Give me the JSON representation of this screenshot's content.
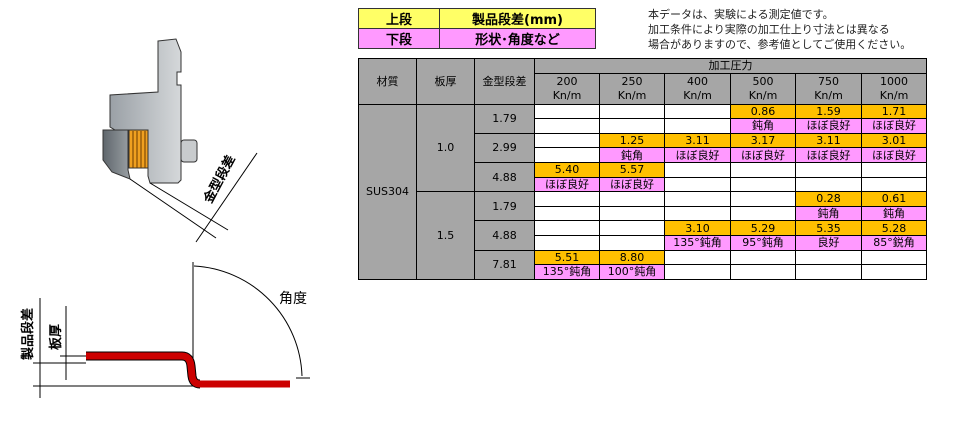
{
  "legend": {
    "rows": [
      {
        "label": "上段",
        "desc": "製品段差(mm)",
        "color": "#ffff66"
      },
      {
        "label": "下段",
        "desc": "形状･角度など",
        "color": "#ff99ff"
      }
    ]
  },
  "note": [
    "本データは、実験による測定値です。",
    "加工条件により実際の加工仕上り寸法とは異なる",
    "場合がありますので、参考値としてご使用ください。"
  ],
  "diagram": {
    "die_step_label": "金型段差",
    "product_step_label": "製品段差",
    "thickness_label": "板厚",
    "angle_label": "角度"
  },
  "colors": {
    "header": "#a6a6a6",
    "value": "#ffc000",
    "shape": "#ff99ff",
    "part": "#cc0000"
  },
  "table": {
    "headers": {
      "material": "材質",
      "thickness": "板厚",
      "die_step": "金型段差",
      "pressure": "加工圧力"
    },
    "pressures": [
      {
        "v": "200",
        "u": "Kn/m"
      },
      {
        "v": "250",
        "u": "Kn/m"
      },
      {
        "v": "400",
        "u": "Kn/m"
      },
      {
        "v": "500",
        "u": "Kn/m"
      },
      {
        "v": "750",
        "u": "Kn/m"
      },
      {
        "v": "1000",
        "u": "Kn/m"
      }
    ],
    "material": "SUS304",
    "groups": [
      {
        "thickness": "1.0",
        "rows": [
          {
            "die_step": "1.79",
            "values": [
              "",
              "",
              "",
              "0.86",
              "1.59",
              "1.71"
            ],
            "shapes": [
              "",
              "",
              "",
              "鈍角",
              "ほぼ良好",
              "ほぼ良好"
            ]
          },
          {
            "die_step": "2.99",
            "values": [
              "",
              "1.25",
              "3.11",
              "3.17",
              "3.11",
              "3.01"
            ],
            "shapes": [
              "",
              "鈍角",
              "ほぼ良好",
              "ほぼ良好",
              "ほぼ良好",
              "ほぼ良好"
            ]
          },
          {
            "die_step": "4.88",
            "values": [
              "5.40",
              "5.57",
              "",
              "",
              "",
              ""
            ],
            "shapes": [
              "ほぼ良好",
              "ほぼ良好",
              "",
              "",
              "",
              ""
            ]
          }
        ]
      },
      {
        "thickness": "1.5",
        "rows": [
          {
            "die_step": "1.79",
            "values": [
              "",
              "",
              "",
              "",
              "0.28",
              "0.61"
            ],
            "shapes": [
              "",
              "",
              "",
              "",
              "鈍角",
              "鈍角"
            ]
          },
          {
            "die_step": "4.88",
            "values": [
              "",
              "",
              "3.10",
              "5.29",
              "5.35",
              "5.28"
            ],
            "shapes": [
              "",
              "",
              "135°鈍角",
              "95°鈍角",
              "良好",
              "85°鋭角"
            ]
          },
          {
            "die_step": "7.81",
            "values": [
              "5.51",
              "8.80",
              "",
              "",
              "",
              ""
            ],
            "shapes": [
              "135°鈍角",
              "100°鈍角",
              "",
              "",
              "",
              ""
            ]
          }
        ]
      }
    ]
  }
}
